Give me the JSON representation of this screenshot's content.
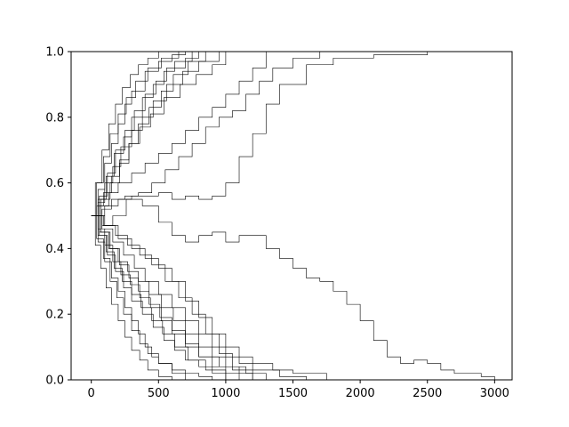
{
  "chart_data": {
    "type": "line",
    "title": "",
    "xlabel": "",
    "ylabel": "",
    "xlim": [
      -150,
      3130
    ],
    "ylim": [
      0.0,
      1.0
    ],
    "xticks": [
      0,
      500,
      1000,
      1500,
      2000,
      2500,
      3000
    ],
    "yticks": [
      0.0,
      0.2,
      0.4,
      0.6,
      0.8,
      1.0
    ],
    "xtick_labels": [
      "0",
      "500",
      "1000",
      "1500",
      "2000",
      "2500",
      "3000"
    ],
    "ytick_labels": [
      "0.0",
      "0.2",
      "0.4",
      "0.6",
      "0.8",
      "1.0"
    ],
    "grid": false,
    "legend": "none",
    "line_color": "#000000",
    "series": [
      {
        "x": [
          0,
          50,
          100,
          150,
          200,
          250,
          300,
          400,
          500,
          600,
          700
        ],
        "y": [
          0.5,
          0.58,
          0.66,
          0.72,
          0.78,
          0.84,
          0.88,
          0.94,
          0.97,
          0.99,
          1.0
        ]
      },
      {
        "x": [
          0,
          40,
          90,
          140,
          200,
          260,
          330,
          420,
          520,
          650
        ],
        "y": [
          0.5,
          0.6,
          0.68,
          0.75,
          0.81,
          0.86,
          0.91,
          0.95,
          0.98,
          1.0
        ]
      },
      {
        "x": [
          0,
          60,
          120,
          180,
          250,
          320,
          400,
          480,
          560,
          700,
          800
        ],
        "y": [
          0.5,
          0.56,
          0.63,
          0.7,
          0.76,
          0.82,
          0.87,
          0.91,
          0.95,
          0.98,
          1.0
        ]
      },
      {
        "x": [
          0,
          50,
          110,
          170,
          240,
          300,
          380,
          460,
          540,
          620,
          750
        ],
        "y": [
          0.5,
          0.55,
          0.62,
          0.69,
          0.74,
          0.8,
          0.86,
          0.9,
          0.94,
          0.97,
          1.0
        ]
      },
      {
        "x": [
          0,
          30,
          80,
          130,
          180,
          230,
          290,
          350,
          420,
          500
        ],
        "y": [
          0.5,
          0.6,
          0.7,
          0.78,
          0.84,
          0.89,
          0.93,
          0.96,
          0.98,
          1.0
        ]
      },
      {
        "x": [
          0,
          70,
          140,
          210,
          280,
          350,
          430,
          520,
          610,
          720,
          850
        ],
        "y": [
          0.5,
          0.55,
          0.6,
          0.66,
          0.72,
          0.78,
          0.83,
          0.88,
          0.93,
          0.97,
          1.0
        ]
      },
      {
        "x": [
          0,
          50,
          100,
          160,
          220,
          300,
          380,
          460,
          560,
          680,
          800,
          950
        ],
        "y": [
          0.5,
          0.54,
          0.6,
          0.65,
          0.71,
          0.76,
          0.8,
          0.85,
          0.9,
          0.94,
          0.97,
          1.0
        ]
      },
      {
        "x": [
          0,
          40,
          90,
          150,
          210,
          280,
          360,
          440,
          540,
          660,
          780,
          900,
          1000
        ],
        "y": [
          0.5,
          0.53,
          0.57,
          0.62,
          0.67,
          0.72,
          0.77,
          0.81,
          0.86,
          0.9,
          0.93,
          0.96,
          1.0
        ]
      },
      {
        "x": [
          0,
          60,
          130,
          200,
          300,
          400,
          500,
          600,
          700,
          800,
          900,
          1000,
          1100,
          1200,
          1300
        ],
        "y": [
          0.5,
          0.53,
          0.57,
          0.6,
          0.63,
          0.66,
          0.69,
          0.72,
          0.76,
          0.8,
          0.83,
          0.87,
          0.91,
          0.95,
          1.0
        ]
      },
      {
        "x": [
          0,
          80,
          150,
          250,
          350,
          450,
          550,
          650,
          750,
          850,
          950,
          1050,
          1150,
          1250,
          1350,
          1500,
          1700
        ],
        "y": [
          0.5,
          0.52,
          0.55,
          0.56,
          0.57,
          0.6,
          0.64,
          0.68,
          0.72,
          0.77,
          0.8,
          0.82,
          0.87,
          0.91,
          0.95,
          0.98,
          1.0
        ]
      },
      {
        "x": [
          0,
          100,
          200,
          300,
          400,
          500,
          600,
          700,
          800,
          900,
          1000,
          1100,
          1200,
          1300,
          1400,
          1600,
          1800,
          2100,
          2500
        ],
        "y": [
          0.5,
          0.53,
          0.55,
          0.56,
          0.56,
          0.57,
          0.55,
          0.56,
          0.55,
          0.56,
          0.6,
          0.68,
          0.75,
          0.84,
          0.9,
          0.96,
          0.98,
          0.99,
          1.0
        ]
      },
      {
        "x": [
          0,
          80,
          160,
          260,
          380,
          500,
          600,
          700,
          800,
          900,
          1000,
          1100,
          1200,
          1300,
          1400,
          1500,
          1600,
          1700,
          1800,
          1900,
          2000,
          2100,
          2200,
          2300,
          2400,
          2500,
          2600,
          2700,
          2800,
          2900,
          3000
        ],
        "y": [
          0.5,
          0.47,
          0.5,
          0.55,
          0.53,
          0.48,
          0.44,
          0.42,
          0.44,
          0.45,
          0.42,
          0.44,
          0.44,
          0.4,
          0.37,
          0.34,
          0.31,
          0.3,
          0.27,
          0.23,
          0.18,
          0.12,
          0.07,
          0.05,
          0.06,
          0.05,
          0.03,
          0.02,
          0.02,
          0.01,
          0.0
        ]
      },
      {
        "x": [
          0,
          50,
          100,
          150,
          200,
          250,
          300,
          350,
          400,
          450,
          500,
          600,
          700,
          800,
          900
        ],
        "y": [
          0.5,
          0.42,
          0.36,
          0.31,
          0.27,
          0.22,
          0.18,
          0.14,
          0.1,
          0.07,
          0.05,
          0.03,
          0.02,
          0.01,
          0.0
        ]
      },
      {
        "x": [
          0,
          60,
          120,
          180,
          240,
          300,
          380,
          460,
          540,
          620,
          700,
          800,
          900,
          1000
        ],
        "y": [
          0.5,
          0.44,
          0.38,
          0.33,
          0.28,
          0.24,
          0.2,
          0.16,
          0.12,
          0.09,
          0.06,
          0.04,
          0.02,
          0.0
        ]
      },
      {
        "x": [
          0,
          40,
          90,
          140,
          190,
          240,
          300,
          360,
          420,
          500,
          600,
          700
        ],
        "y": [
          0.5,
          0.43,
          0.37,
          0.3,
          0.25,
          0.2,
          0.15,
          0.11,
          0.08,
          0.05,
          0.02,
          0.0
        ]
      },
      {
        "x": [
          0,
          70,
          140,
          210,
          280,
          350,
          430,
          510,
          600,
          700,
          800,
          900,
          1000,
          1100
        ],
        "y": [
          0.5,
          0.45,
          0.4,
          0.35,
          0.31,
          0.27,
          0.23,
          0.19,
          0.15,
          0.11,
          0.07,
          0.04,
          0.02,
          0.0
        ]
      },
      {
        "x": [
          0,
          50,
          100,
          160,
          220,
          290,
          360,
          440,
          520,
          600,
          700,
          800,
          950,
          1100,
          1200
        ],
        "y": [
          0.5,
          0.46,
          0.41,
          0.36,
          0.32,
          0.29,
          0.25,
          0.22,
          0.18,
          0.14,
          0.1,
          0.07,
          0.04,
          0.02,
          0.0
        ]
      },
      {
        "x": [
          0,
          60,
          130,
          200,
          270,
          350,
          430,
          520,
          610,
          700,
          800,
          900,
          1000,
          1150,
          1300
        ],
        "y": [
          0.5,
          0.45,
          0.4,
          0.36,
          0.33,
          0.3,
          0.26,
          0.22,
          0.18,
          0.14,
          0.1,
          0.07,
          0.04,
          0.02,
          0.0
        ]
      },
      {
        "x": [
          0,
          80,
          160,
          240,
          320,
          400,
          500,
          600,
          700,
          800,
          900,
          1000,
          1100,
          1200,
          1400,
          1600
        ],
        "y": [
          0.5,
          0.46,
          0.42,
          0.38,
          0.34,
          0.3,
          0.26,
          0.22,
          0.18,
          0.14,
          0.1,
          0.07,
          0.05,
          0.03,
          0.01,
          0.0
        ]
      },
      {
        "x": [
          0,
          100,
          200,
          300,
          400,
          500,
          600,
          700,
          800,
          900,
          1000,
          1100,
          1200,
          1350,
          1500,
          1750
        ],
        "y": [
          0.5,
          0.47,
          0.43,
          0.4,
          0.37,
          0.34,
          0.3,
          0.24,
          0.19,
          0.14,
          0.1,
          0.07,
          0.05,
          0.03,
          0.02,
          0.0
        ]
      },
      {
        "x": [
          0,
          30,
          70,
          110,
          150,
          200,
          250,
          300,
          360,
          420,
          500,
          600
        ],
        "y": [
          0.5,
          0.41,
          0.34,
          0.28,
          0.23,
          0.18,
          0.13,
          0.09,
          0.06,
          0.03,
          0.01,
          0.0
        ]
      },
      {
        "x": [
          0,
          50,
          110,
          170,
          230,
          300,
          370,
          450,
          530,
          620,
          720,
          850,
          1000
        ],
        "y": [
          0.5,
          0.44,
          0.39,
          0.34,
          0.3,
          0.26,
          0.22,
          0.18,
          0.14,
          0.1,
          0.06,
          0.03,
          0.0
        ]
      },
      {
        "x": [
          0,
          90,
          180,
          270,
          360,
          450,
          550,
          650,
          750,
          850,
          950,
          1050,
          1200
        ],
        "y": [
          0.5,
          0.47,
          0.44,
          0.41,
          0.38,
          0.35,
          0.3,
          0.25,
          0.2,
          0.14,
          0.08,
          0.03,
          0.0
        ]
      }
    ]
  }
}
